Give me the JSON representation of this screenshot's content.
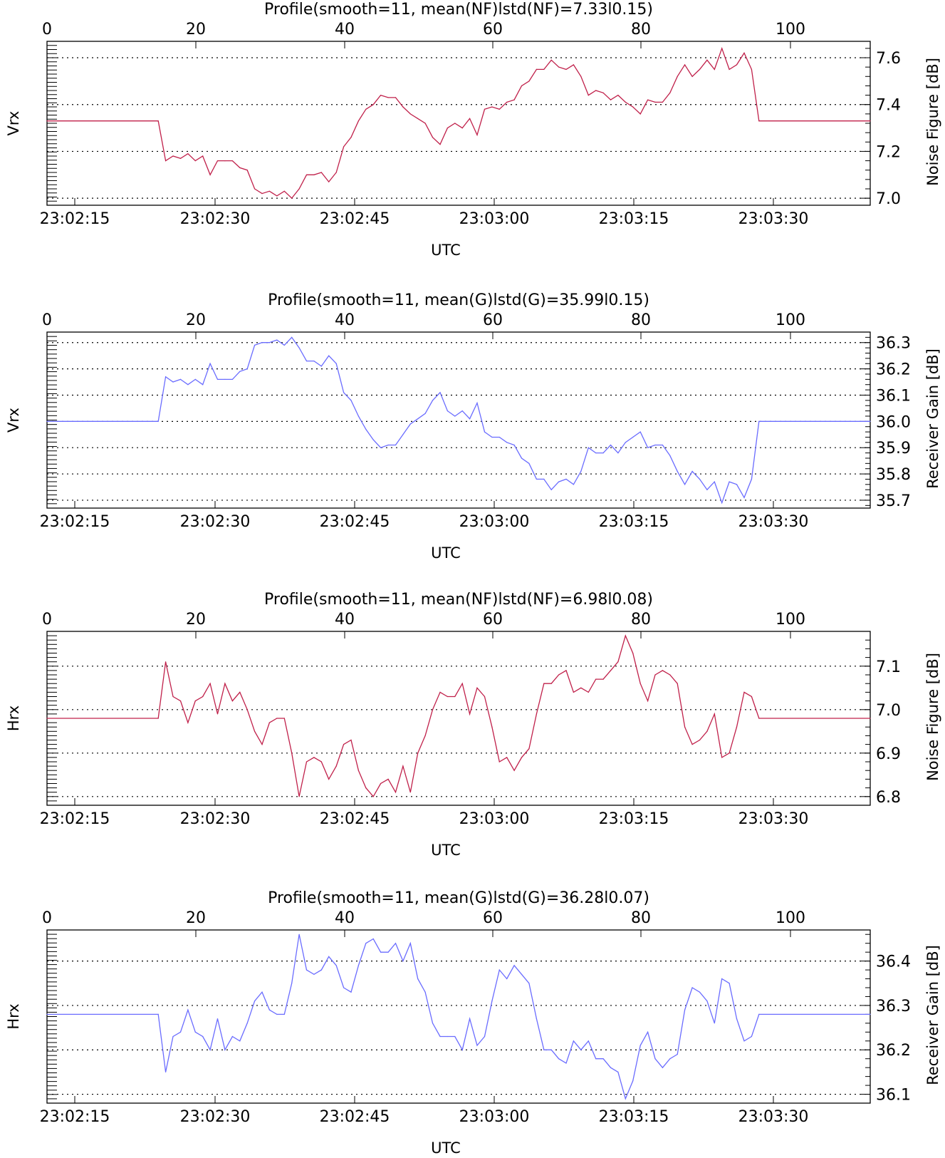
{
  "chart_data": [
    {
      "type": "line",
      "title": "Profile(smooth=11, mean(NF)lstd(NF)=7.33l0.15)",
      "xlabel": "UTC",
      "ylabel_left": "Vrx",
      "ylabel_right": "Noise Figure [dB]",
      "top_ticks": [
        "0",
        "20",
        "40",
        "60",
        "80",
        "100"
      ],
      "bottom_ticks": [
        "23:02:15",
        "23:02:30",
        "23:02:45",
        "23:03:00",
        "23:03:15",
        "23:03:30"
      ],
      "right_ticks": [
        "7.0",
        "7.2",
        "7.4",
        "7.6"
      ],
      "xlim": [
        0,
        111
      ],
      "ylim": [
        6.97,
        7.67
      ],
      "grid": "horizontal dotted",
      "series_color": "#c0204a",
      "x": [
        0,
        15,
        16,
        17,
        18,
        19,
        20,
        21,
        22,
        23,
        24,
        25,
        26,
        27,
        28,
        29,
        30,
        31,
        32,
        33,
        34,
        35,
        36,
        37,
        38,
        39,
        40,
        41,
        42,
        43,
        44,
        45,
        46,
        47,
        48,
        49,
        50,
        51,
        52,
        53,
        54,
        55,
        56,
        57,
        58,
        59,
        60,
        61,
        62,
        63,
        64,
        65,
        66,
        67,
        68,
        69,
        70,
        71,
        72,
        73,
        74,
        75,
        76,
        77,
        78,
        79,
        80,
        81,
        82,
        83,
        84,
        85,
        86,
        87,
        88,
        89,
        90,
        91,
        92,
        93,
        94,
        95,
        96,
        111
      ],
      "values": [
        7.33,
        7.33,
        7.16,
        7.18,
        7.17,
        7.19,
        7.16,
        7.18,
        7.1,
        7.16,
        7.16,
        7.16,
        7.13,
        7.12,
        7.04,
        7.02,
        7.03,
        7.01,
        7.03,
        7.0,
        7.04,
        7.1,
        7.1,
        7.11,
        7.07,
        7.11,
        7.22,
        7.26,
        7.33,
        7.38,
        7.4,
        7.44,
        7.43,
        7.43,
        7.39,
        7.36,
        7.34,
        7.32,
        7.26,
        7.23,
        7.3,
        7.32,
        7.3,
        7.34,
        7.27,
        7.38,
        7.39,
        7.38,
        7.41,
        7.42,
        7.48,
        7.5,
        7.55,
        7.55,
        7.59,
        7.56,
        7.55,
        7.57,
        7.52,
        7.44,
        7.46,
        7.45,
        7.42,
        7.44,
        7.41,
        7.39,
        7.36,
        7.42,
        7.41,
        7.41,
        7.45,
        7.52,
        7.57,
        7.52,
        7.55,
        7.59,
        7.55,
        7.64,
        7.55,
        7.57,
        7.62,
        7.55,
        7.33,
        7.33
      ]
    },
    {
      "type": "line",
      "title": "Profile(smooth=11, mean(G)lstd(G)=35.99l0.15)",
      "xlabel": "UTC",
      "ylabel_left": "Vrx",
      "ylabel_right": "Receiver Gain [dB]",
      "top_ticks": [
        "0",
        "20",
        "40",
        "60",
        "80",
        "100"
      ],
      "bottom_ticks": [
        "23:02:15",
        "23:02:30",
        "23:02:45",
        "23:03:00",
        "23:03:15",
        "23:03:30"
      ],
      "right_ticks": [
        "35.7",
        "35.8",
        "35.9",
        "36.0",
        "36.1",
        "36.2",
        "36.3"
      ],
      "xlim": [
        0,
        111
      ],
      "ylim": [
        35.67,
        36.34
      ],
      "grid": "horizontal dotted",
      "series_color": "#6a6cff",
      "x": [
        0,
        15,
        16,
        17,
        18,
        19,
        20,
        21,
        22,
        23,
        24,
        25,
        26,
        27,
        28,
        29,
        30,
        31,
        32,
        33,
        34,
        35,
        36,
        37,
        38,
        39,
        40,
        41,
        42,
        43,
        44,
        45,
        46,
        47,
        48,
        49,
        50,
        51,
        52,
        53,
        54,
        55,
        56,
        57,
        58,
        59,
        60,
        61,
        62,
        63,
        64,
        65,
        66,
        67,
        68,
        69,
        70,
        71,
        72,
        73,
        74,
        75,
        76,
        77,
        78,
        79,
        80,
        81,
        82,
        83,
        84,
        85,
        86,
        87,
        88,
        89,
        90,
        91,
        92,
        93,
        94,
        95,
        96,
        111
      ],
      "values": [
        36.0,
        36.0,
        36.17,
        36.15,
        36.16,
        36.14,
        36.16,
        36.14,
        36.22,
        36.16,
        36.16,
        36.16,
        36.19,
        36.2,
        36.29,
        36.3,
        36.3,
        36.31,
        36.29,
        36.32,
        36.28,
        36.23,
        36.23,
        36.21,
        36.25,
        36.22,
        36.11,
        36.08,
        36.02,
        35.97,
        35.93,
        35.9,
        35.91,
        35.91,
        35.95,
        35.99,
        36.01,
        36.03,
        36.08,
        36.11,
        36.04,
        36.02,
        36.04,
        36.01,
        36.07,
        35.96,
        35.94,
        35.94,
        35.92,
        35.91,
        35.86,
        35.84,
        35.78,
        35.78,
        35.74,
        35.77,
        35.78,
        35.76,
        35.81,
        35.9,
        35.88,
        35.88,
        35.91,
        35.88,
        35.92,
        35.94,
        35.96,
        35.9,
        35.91,
        35.91,
        35.87,
        35.81,
        35.76,
        35.81,
        35.78,
        35.74,
        35.77,
        35.69,
        35.77,
        35.76,
        35.71,
        35.78,
        36.0,
        36.0
      ]
    },
    {
      "type": "line",
      "title": "Profile(smooth=11, mean(NF)lstd(NF)=6.98l0.08)",
      "xlabel": "UTC",
      "ylabel_left": "Hrx",
      "ylabel_right": "Noise Figure [dB]",
      "top_ticks": [
        "0",
        "20",
        "40",
        "60",
        "80",
        "100"
      ],
      "bottom_ticks": [
        "23:02:15",
        "23:02:30",
        "23:02:45",
        "23:03:00",
        "23:03:15",
        "23:03:30"
      ],
      "right_ticks": [
        "6.8",
        "6.9",
        "7.0",
        "7.1"
      ],
      "xlim": [
        0,
        111
      ],
      "ylim": [
        6.78,
        7.18
      ],
      "grid": "horizontal dotted",
      "series_color": "#c0204a",
      "x": [
        0,
        15,
        16,
        17,
        18,
        19,
        20,
        21,
        22,
        23,
        24,
        25,
        26,
        27,
        28,
        29,
        30,
        31,
        32,
        33,
        34,
        35,
        36,
        37,
        38,
        39,
        40,
        41,
        42,
        43,
        44,
        45,
        46,
        47,
        48,
        49,
        50,
        51,
        52,
        53,
        54,
        55,
        56,
        57,
        58,
        59,
        60,
        61,
        62,
        63,
        64,
        65,
        66,
        67,
        68,
        69,
        70,
        71,
        72,
        73,
        74,
        75,
        76,
        77,
        78,
        79,
        80,
        81,
        82,
        83,
        84,
        85,
        86,
        87,
        88,
        89,
        90,
        91,
        92,
        93,
        94,
        95,
        96,
        111
      ],
      "values": [
        6.98,
        6.98,
        7.11,
        7.03,
        7.02,
        6.97,
        7.02,
        7.03,
        7.06,
        6.99,
        7.06,
        7.02,
        7.04,
        7.0,
        6.95,
        6.92,
        6.97,
        6.98,
        6.98,
        6.9,
        6.8,
        6.88,
        6.89,
        6.88,
        6.84,
        6.87,
        6.92,
        6.93,
        6.86,
        6.82,
        6.8,
        6.83,
        6.84,
        6.81,
        6.87,
        6.81,
        6.9,
        6.94,
        7.0,
        7.04,
        7.03,
        7.03,
        7.06,
        6.99,
        7.05,
        7.03,
        6.96,
        6.88,
        6.89,
        6.86,
        6.89,
        6.91,
        6.99,
        7.06,
        7.06,
        7.08,
        7.09,
        7.04,
        7.05,
        7.04,
        7.07,
        7.07,
        7.09,
        7.11,
        7.17,
        7.13,
        7.06,
        7.02,
        7.08,
        7.09,
        7.08,
        7.06,
        6.96,
        6.92,
        6.93,
        6.95,
        6.99,
        6.89,
        6.9,
        6.96,
        7.04,
        7.03,
        6.98,
        6.98
      ]
    },
    {
      "type": "line",
      "title": "Profile(smooth=11, mean(G)lstd(G)=36.28l0.07)",
      "xlabel": "UTC",
      "ylabel_left": "Hrx",
      "ylabel_right": "Receiver Gain [dB]",
      "top_ticks": [
        "0",
        "20",
        "40",
        "60",
        "80",
        "100"
      ],
      "bottom_ticks": [
        "23:02:15",
        "23:02:30",
        "23:02:45",
        "23:03:00",
        "23:03:15",
        "23:03:30"
      ],
      "right_ticks": [
        "36.1",
        "36.2",
        "36.3",
        "36.4"
      ],
      "xlim": [
        0,
        111
      ],
      "ylim": [
        36.08,
        36.47
      ],
      "grid": "horizontal dotted",
      "series_color": "#6a6cff",
      "x": [
        0,
        15,
        16,
        17,
        18,
        19,
        20,
        21,
        22,
        23,
        24,
        25,
        26,
        27,
        28,
        29,
        30,
        31,
        32,
        33,
        34,
        35,
        36,
        37,
        38,
        39,
        40,
        41,
        42,
        43,
        44,
        45,
        46,
        47,
        48,
        49,
        50,
        51,
        52,
        53,
        54,
        55,
        56,
        57,
        58,
        59,
        60,
        61,
        62,
        63,
        64,
        65,
        66,
        67,
        68,
        69,
        70,
        71,
        72,
        73,
        74,
        75,
        76,
        77,
        78,
        79,
        80,
        81,
        82,
        83,
        84,
        85,
        86,
        87,
        88,
        89,
        90,
        91,
        92,
        93,
        94,
        95,
        96,
        111
      ],
      "values": [
        36.28,
        36.28,
        36.15,
        36.23,
        36.24,
        36.29,
        36.24,
        36.23,
        36.2,
        36.27,
        36.2,
        36.23,
        36.22,
        36.26,
        36.31,
        36.33,
        36.29,
        36.28,
        36.28,
        36.35,
        36.46,
        36.38,
        36.37,
        36.38,
        36.41,
        36.39,
        36.34,
        36.33,
        36.39,
        36.44,
        36.45,
        36.42,
        36.42,
        36.44,
        36.4,
        36.44,
        36.36,
        36.33,
        36.26,
        36.23,
        36.23,
        36.23,
        36.2,
        36.27,
        36.21,
        36.23,
        36.31,
        36.38,
        36.36,
        36.39,
        36.37,
        36.35,
        36.27,
        36.2,
        36.2,
        36.18,
        36.17,
        36.22,
        36.2,
        36.22,
        36.18,
        36.18,
        36.16,
        36.15,
        36.09,
        36.13,
        36.21,
        36.24,
        36.18,
        36.16,
        36.18,
        36.19,
        36.29,
        36.34,
        36.33,
        36.31,
        36.26,
        36.36,
        36.35,
        36.27,
        36.22,
        36.23,
        36.28,
        36.28
      ]
    }
  ]
}
